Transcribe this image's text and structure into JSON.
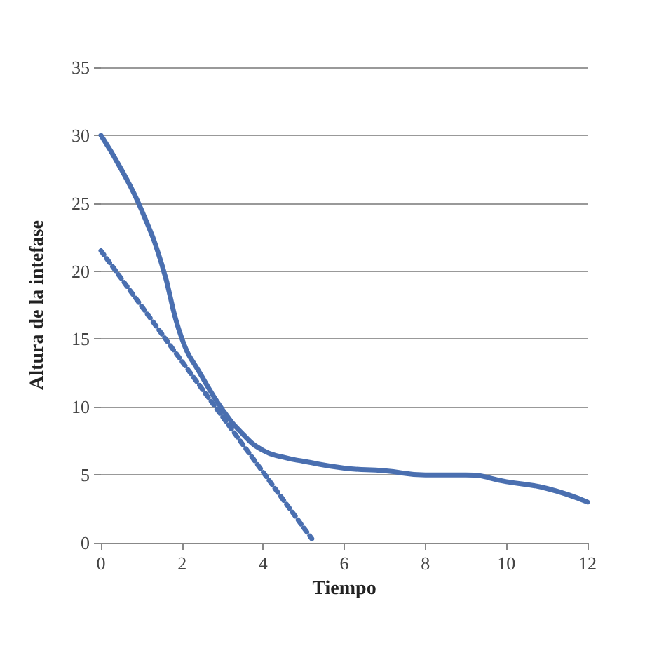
{
  "chart_data": {
    "type": "line",
    "xlabel": "Tiempo",
    "ylabel": "Altura de la intefase",
    "xlim": [
      0,
      12
    ],
    "xticks": [
      0,
      2,
      4,
      6,
      8,
      10,
      12
    ],
    "ylim": [
      0,
      35
    ],
    "yticks": [
      0,
      5,
      10,
      15,
      20,
      25,
      30,
      35
    ],
    "grid": "y",
    "marker": "none",
    "series": [
      {
        "color": "#4a6fb0",
        "line_style": "solid",
        "x": [
          0,
          0.5,
          1,
          1.5,
          2,
          2.5,
          3,
          3.5,
          4,
          4.5,
          5,
          6,
          7,
          8,
          9,
          10,
          11,
          12
        ],
        "values": [
          30,
          27.5,
          24.5,
          20.5,
          15,
          12.2,
          9.8,
          8,
          6.8,
          6.3,
          6,
          5.5,
          5.3,
          5,
          5,
          4.5,
          4,
          3
        ]
      },
      {
        "color": "#4a6fb0",
        "line_style": "dotted",
        "x": [
          0,
          5.2
        ],
        "values": [
          21.5,
          0.3
        ]
      }
    ]
  }
}
